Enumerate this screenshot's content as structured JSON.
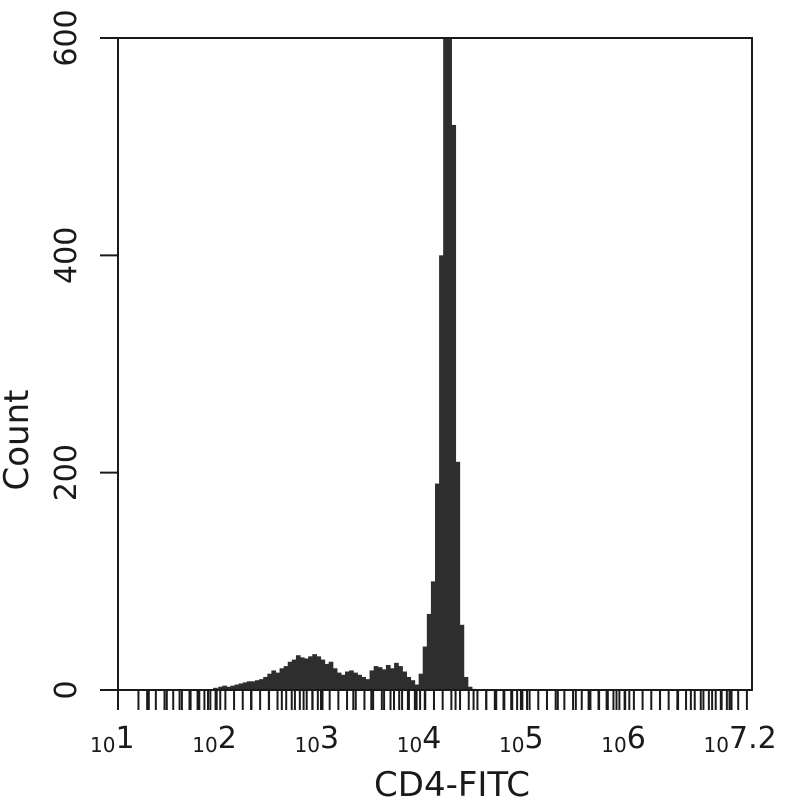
{
  "chart_data": {
    "type": "bar",
    "subtype": "histogram",
    "xlabel": "CD4-FITC",
    "ylabel": "Count",
    "x_scale": "log10",
    "xlim": [
      1,
      7.2
    ],
    "ylim": [
      0,
      600
    ],
    "y_ticks": [
      0,
      200,
      400,
      600
    ],
    "x_tick_labels": [
      {
        "base": "10",
        "exp": "1"
      },
      {
        "base": "10",
        "exp": "2"
      },
      {
        "base": "10",
        "exp": "3"
      },
      {
        "base": "10",
        "exp": "4"
      },
      {
        "base": "10",
        "exp": "5"
      },
      {
        "base": "10",
        "exp": "6"
      },
      {
        "base": "10",
        "exp": "7.2"
      }
    ],
    "bar_color": "#2e2e2e",
    "x": [
      1.91,
      1.95,
      2.0,
      2.04,
      2.08,
      2.12,
      2.16,
      2.2,
      2.24,
      2.28,
      2.32,
      2.36,
      2.4,
      2.44,
      2.48,
      2.52,
      2.56,
      2.6,
      2.64,
      2.68,
      2.72,
      2.76,
      2.8,
      2.84,
      2.88,
      2.92,
      2.96,
      3.0,
      3.04,
      3.08,
      3.12,
      3.16,
      3.2,
      3.24,
      3.28,
      3.32,
      3.36,
      3.4,
      3.44,
      3.48,
      3.52,
      3.56,
      3.6,
      3.64,
      3.68,
      3.72,
      3.76,
      3.8,
      3.84,
      3.88,
      3.92,
      3.96,
      4.0,
      4.04,
      4.08,
      4.12,
      4.16,
      4.2,
      4.24,
      4.28,
      4.32,
      4.36,
      4.4,
      4.44,
      4.48,
      4.52,
      4.56
    ],
    "values": [
      0,
      2,
      3,
      4,
      3,
      4,
      5,
      6,
      7,
      8,
      8,
      9,
      10,
      12,
      15,
      18,
      16,
      20,
      22,
      26,
      28,
      32,
      30,
      29,
      31,
      33,
      31,
      28,
      24,
      26,
      20,
      16,
      14,
      17,
      18,
      16,
      14,
      12,
      10,
      18,
      22,
      21,
      19,
      23,
      20,
      25,
      22,
      17,
      12,
      9,
      5,
      15,
      40,
      70,
      100,
      190,
      400,
      600,
      600,
      520,
      210,
      60,
      12,
      3,
      1,
      0,
      0
    ]
  }
}
